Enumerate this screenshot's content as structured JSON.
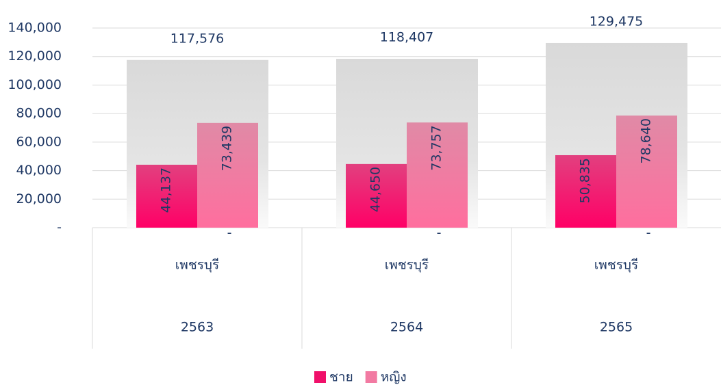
{
  "chart_data": {
    "type": "bar",
    "categories": [
      [
        "เพชรบุรี",
        "2563"
      ],
      [
        "เพชรบุรี",
        "2564"
      ],
      [
        "เพชรบุรี",
        "2565"
      ]
    ],
    "series": [
      {
        "values": [
          117576,
          118407,
          129475
        ],
        "value_labels": [
          "117,576",
          "118,407",
          "129,475"
        ],
        "color": "#dcdcdc"
      },
      {
        "name": "ชาย",
        "color": "#f0106a",
        "values": [
          44137,
          44650,
          50835
        ],
        "value_labels": [
          "44,137",
          "44,650",
          "50,835"
        ]
      },
      {
        "name": "หญิง",
        "color": "#f27aa2",
        "values": [
          73439,
          73757,
          78640
        ],
        "value_labels": [
          "73,439",
          "73,757",
          "78,640"
        ]
      },
      {
        "values": [
          0,
          0,
          0
        ],
        "value_labels": [
          "-",
          "-",
          "-"
        ]
      }
    ],
    "ylim": [
      0,
      140000
    ],
    "yticks": [
      {
        "value": 0,
        "label": "-"
      },
      {
        "value": 20000,
        "label": "20,000"
      },
      {
        "value": 40000,
        "label": "40,000"
      },
      {
        "value": 60000,
        "label": "60,000"
      },
      {
        "value": 80000,
        "label": "80,000"
      },
      {
        "value": 100000,
        "label": "100,000"
      },
      {
        "value": 120000,
        "label": "120,000"
      },
      {
        "value": 140000,
        "label": "140,000"
      }
    ],
    "grid": true,
    "legend": "bottom"
  }
}
